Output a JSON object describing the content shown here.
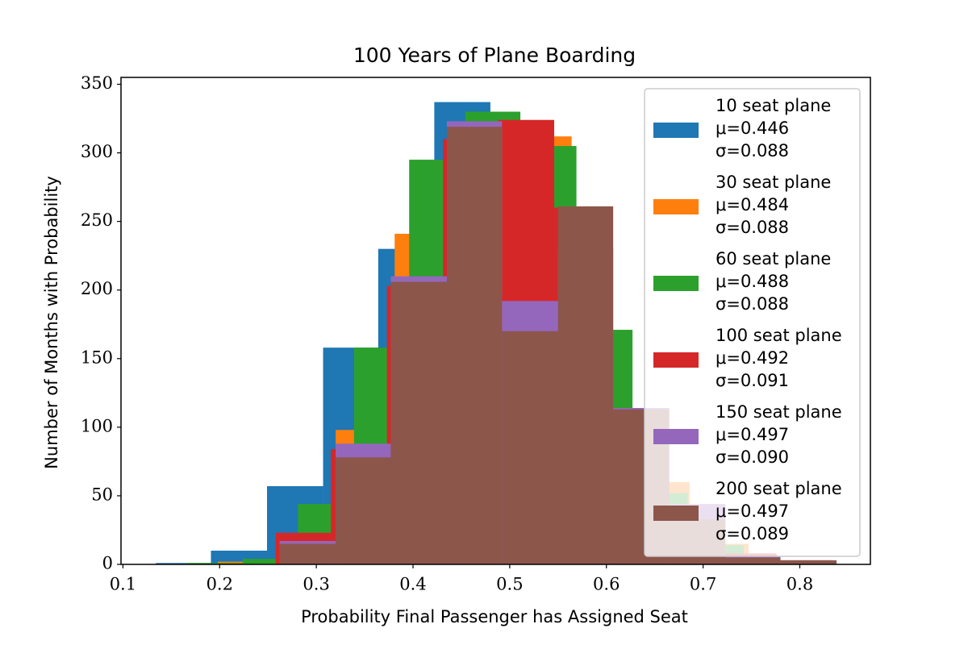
{
  "chart_data": {
    "type": "histogram",
    "title": "100 Years of Plane Boarding",
    "x_label": "Probability Final Passenger has Assigned Seat",
    "y_label": "Number of Months with Probability",
    "xlim": [
      0.098,
      0.873
    ],
    "ylim": [
      0,
      355
    ],
    "xticks": [
      0.1,
      0.2,
      0.3,
      0.4,
      0.5,
      0.6,
      0.7,
      0.8
    ],
    "yticks": [
      0,
      50,
      100,
      150,
      200,
      250,
      300,
      350
    ],
    "legend": "upper right",
    "series": [
      {
        "name": "10 seat plane",
        "legend_lines": [
          "μ=0.446",
          "σ=0.088"
        ],
        "color": "#1f77b4",
        "bins": [
          0.134,
          0.191,
          0.249,
          0.307,
          0.364,
          0.422,
          0.48,
          0.537,
          0.595,
          0.652,
          0.71
        ],
        "values": [
          1,
          10,
          57,
          158,
          230,
          337,
          300,
          150,
          50,
          10
        ]
      },
      {
        "name": "30 seat plane",
        "legend_lines": [
          "μ=0.484",
          "σ=0.088"
        ],
        "color": "#ff7f0e",
        "bins": [
          0.198,
          0.259,
          0.32,
          0.381,
          0.442,
          0.503,
          0.564,
          0.625,
          0.686,
          0.747,
          0.808
        ],
        "values": [
          2,
          20,
          98,
          241,
          315,
          312,
          170,
          60,
          15,
          2
        ]
      },
      {
        "name": "60 seat plane",
        "legend_lines": [
          "μ=0.488",
          "σ=0.088"
        ],
        "color": "#2ca02c",
        "bins": [
          0.166,
          0.224,
          0.281,
          0.339,
          0.396,
          0.454,
          0.511,
          0.569,
          0.627,
          0.684,
          0.742
        ],
        "values": [
          1,
          4,
          44,
          158,
          295,
          330,
          305,
          171,
          52,
          14
        ]
      },
      {
        "name": "100 seat plane",
        "legend_lines": [
          "μ=0.492",
          "σ=0.091"
        ],
        "color": "#d62728",
        "bins": [
          0.258,
          0.315,
          0.373,
          0.431,
          0.488,
          0.546,
          0.603,
          0.661,
          0.719,
          0.776,
          0.834
        ],
        "values": [
          23,
          84,
          203,
          310,
          324,
          260,
          110,
          35,
          8,
          3
        ]
      },
      {
        "name": "150 seat plane",
        "legend_lines": [
          "μ=0.497",
          "σ=0.090"
        ],
        "color": "#9467bd",
        "bins": [
          0.262,
          0.32,
          0.377,
          0.435,
          0.492,
          0.55,
          0.607,
          0.665,
          0.723,
          0.78,
          0.838
        ],
        "values": [
          17,
          88,
          210,
          323,
          192,
          230,
          114,
          44,
          6,
          2
        ]
      },
      {
        "name": "200 seat plane",
        "legend_lines": [
          "μ=0.497",
          "σ=0.089"
        ],
        "color": "#8c564b",
        "bins": [
          0.262,
          0.32,
          0.377,
          0.435,
          0.492,
          0.55,
          0.607,
          0.665,
          0.723,
          0.78,
          0.838
        ],
        "values": [
          15,
          78,
          206,
          319,
          170,
          261,
          113,
          33,
          5,
          3
        ]
      }
    ]
  }
}
